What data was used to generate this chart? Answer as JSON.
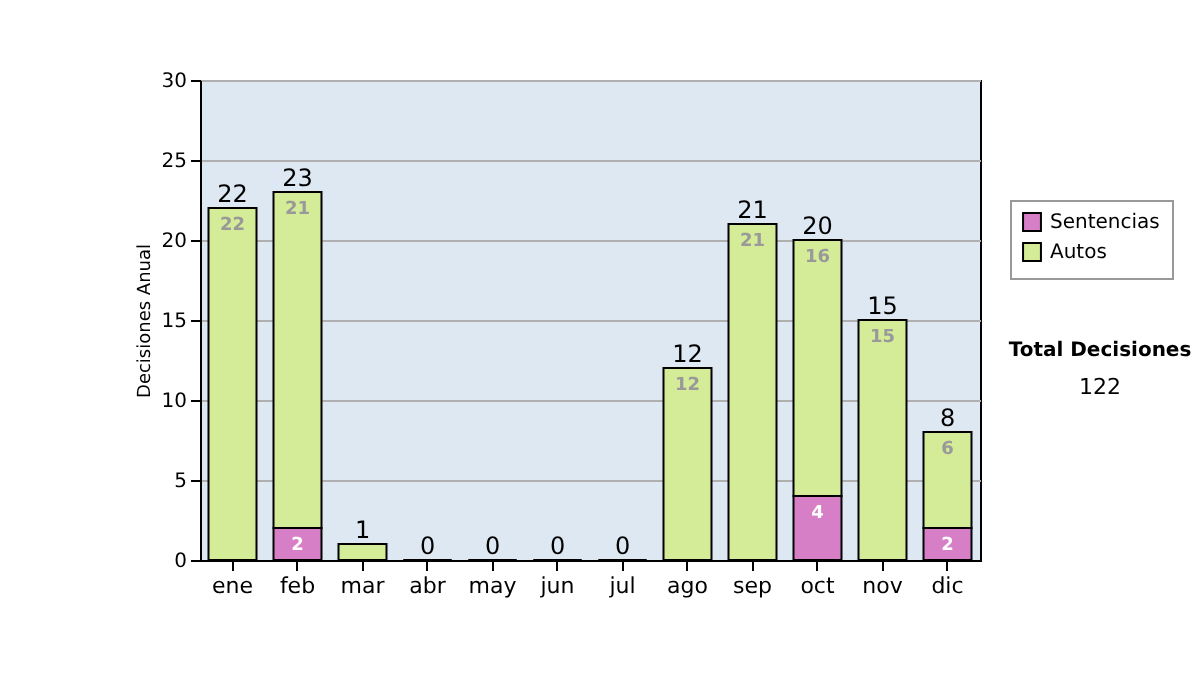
{
  "chart_data": {
    "type": "bar",
    "stacked": true,
    "ylabel": "Decisiones Anual",
    "categories": [
      "ene",
      "feb",
      "mar",
      "abr",
      "may",
      "jun",
      "jul",
      "ago",
      "sep",
      "oct",
      "nov",
      "dic"
    ],
    "series": [
      {
        "name": "Sentencias",
        "color": "#d67fc6",
        "values": [
          0,
          2,
          0,
          0,
          0,
          0,
          0,
          0,
          0,
          4,
          0,
          2
        ],
        "value_labels": [
          null,
          "2",
          null,
          null,
          null,
          null,
          null,
          null,
          null,
          "4",
          null,
          "2"
        ]
      },
      {
        "name": "Autos",
        "color": "#d4eb97",
        "values": [
          22,
          21,
          1,
          0,
          0,
          0,
          0,
          12,
          21,
          16,
          15,
          6
        ],
        "value_labels": [
          "22",
          "21",
          null,
          null,
          null,
          null,
          null,
          "12",
          "21",
          "16",
          "15",
          "6"
        ]
      }
    ],
    "totals": [
      "22",
      "23",
      "1",
      "0",
      "0",
      "0",
      "0",
      "12",
      "21",
      "20",
      "15",
      "8"
    ],
    "ylim": [
      0,
      30
    ],
    "yticks": [
      0,
      5,
      10,
      15,
      20,
      25,
      30
    ],
    "grid": "y",
    "legend": "right",
    "annotations": [
      "Total Decisiones",
      "122"
    ]
  }
}
